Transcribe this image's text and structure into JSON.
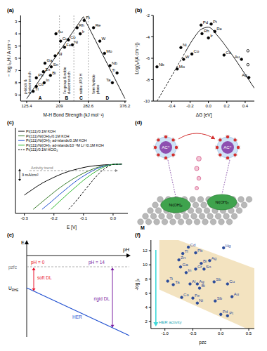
{
  "chart_data": [
    {
      "type": "scatter",
      "title": "(a)",
      "x_label": "M-H Bond Strength (kJ mol⁻¹)",
      "y_label": "− log i₀,H / A cm⁻²",
      "xlim": [
        110,
        380
      ],
      "xticks": [
        125.4,
        209,
        282.6,
        376.2
      ],
      "ylim": [
        9.5,
        2.5
      ],
      "yticks": [
        3,
        4,
        5,
        6,
        7,
        8,
        9
      ],
      "color": "#000000",
      "marker": "filled",
      "labels": [
        "Tl",
        "Cd",
        "Pb",
        "In",
        "Zn",
        "Ga",
        "Bi",
        "Sn",
        "Ag",
        "Au",
        "Cu",
        "Fe",
        "Co",
        "Ni",
        "Rh",
        "Ir",
        "Pt",
        "Re",
        "W",
        "Mo",
        "Nb",
        "Ta",
        "Ti"
      ],
      "x": [
        142,
        150,
        150,
        170,
        168,
        172,
        186,
        188,
        198,
        200,
        212,
        222,
        232,
        242,
        254,
        262,
        272,
        296,
        312,
        324,
        338,
        344,
        356
      ],
      "values": [
        8.7,
        8.3,
        7.6,
        8.0,
        7.1,
        6.4,
        7.4,
        6.7,
        5.8,
        4.0,
        4.6,
        5.1,
        4.5,
        4.9,
        3.5,
        4.0,
        2.9,
        3.5,
        4.6,
        5.6,
        6.6,
        8.0,
        7.2
      ],
      "volcano": {
        "x": [
          125.4,
          270,
          376.2
        ],
        "values": [
          9.3,
          2.6,
          9.3
        ],
        "color": "#000000"
      },
      "regions": [
        {
          "label": "A",
          "text": "p-block & d-electron rich",
          "xlim": [
            110,
            209
          ]
        },
        {
          "label": "B",
          "text": "Fe-group & noble d-electron rich",
          "xlim": [
            209,
            245.8
          ]
        },
        {
          "label": "C",
          "text": "noble UPD H",
          "xlim": [
            245.8,
            282.6
          ]
        },
        {
          "label": "D",
          "text": "form hydride phase",
          "xlim": [
            282.6,
            380
          ]
        }
      ]
    },
    {
      "type": "scatter",
      "title": "(b)",
      "x_label": "ΔG [eV]",
      "y_label": "Log(i₀/(A cm⁻²))",
      "xlim": [
        -0.6,
        0.5
      ],
      "xticks": [
        -0.4,
        -0.2,
        {
          "value": 0,
          "label": "0.0"
        },
        0.2,
        0.4
      ],
      "ylim": [
        -10,
        -2
      ],
      "yticks": [
        -10,
        -8,
        -6,
        -4,
        -2
      ],
      "series": [
        {
          "marker": "filled",
          "color": "#000000",
          "labels": [
            "Pd",
            "Pt",
            "Re",
            "Rh",
            "Ir",
            "Ni",
            "Co",
            "W",
            "Mo",
            "Nb",
            "Cu",
            "Au",
            "Ag"
          ],
          "x": [
            -0.08,
            0.03,
            0.07,
            -0.07,
            0.0,
            -0.3,
            -0.18,
            -0.27,
            -0.34,
            -0.56,
            0.17,
            0.36,
            0.44
          ],
          "values": [
            -2.9,
            -2.8,
            -3.5,
            -3.7,
            -4.1,
            -5.0,
            -5.6,
            -6.1,
            -7.0,
            -6.8,
            -5.7,
            -6.1,
            -7.8
          ]
        },
        {
          "marker": "open",
          "color": "#000000",
          "x": [
            0.43,
            0.43
          ],
          "values": [
            -5.3,
            -6.6
          ]
        }
      ],
      "curves": [
        {
          "line_style": "dashed",
          "color": "#000000",
          "x": [
            -0.56,
            -0.45,
            -0.35,
            -0.25
          ],
          "values": [
            -10,
            -8.4,
            -6.9,
            -5.4
          ]
        },
        {
          "line_style": "solid",
          "color": "#000000",
          "x": [
            -0.25,
            -0.15,
            -0.08,
            0,
            0.1,
            0.2,
            0.3,
            0.4,
            0.5
          ],
          "values": [
            -5.4,
            -4.0,
            -3.3,
            -3.1,
            -3.9,
            -5.0,
            -6.2,
            -7.5,
            -8.8
          ]
        }
      ]
    },
    {
      "type": "line",
      "title": "(c)",
      "x_label": "E [V]",
      "xlim": [
        -0.33,
        0.05
      ],
      "xticks": [
        -0.3,
        -0.2,
        -0.1,
        {
          "value": 0,
          "label": "0.0"
        }
      ],
      "ylim": [
        -12,
        9
      ],
      "tick_labels": "x",
      "legend": "upper left",
      "x": [
        -0.3,
        -0.27,
        -0.24,
        -0.21,
        -0.18,
        -0.15,
        -0.12,
        -0.09,
        -0.06,
        -0.03,
        0,
        0.03
      ],
      "series": [
        {
          "name": "Pt(111)/0.1M KOH",
          "color": "#000000",
          "line_style": "solid",
          "values": [
            -7.5,
            -6,
            -4.6,
            -3.5,
            -2.5,
            -1.7,
            -1.1,
            -0.6,
            -0.3,
            -0.1,
            0,
            0.1
          ]
        },
        {
          "name": "Pt(111)/Ni(OH)₂/0.1M KOH",
          "color": "#3a7d2c",
          "line_style": "solid",
          "values": [
            null,
            -11,
            -9.2,
            -7.4,
            -5.7,
            -4.2,
            -2.9,
            -1.8,
            -0.9,
            -0.3,
            0,
            0.1
          ]
        },
        {
          "name": "Pt(111)/Ni(OH)₂ ad-islands/0.1M KOH",
          "color": "#1f4fd0",
          "line_style": "solid",
          "values": [
            null,
            null,
            -11,
            -9.2,
            -7.3,
            -5.5,
            -3.8,
            -2.4,
            -1.2,
            -0.4,
            0,
            0.1
          ]
        },
        {
          "name": "Pt(111)/Ni(OH)₂ ad-islands/10⁻³M Li⁺/0.1M KOH",
          "color": "#2db82d",
          "line_style": "solid",
          "values": [
            null,
            null,
            null,
            -11,
            -9,
            -7,
            -5.1,
            -3.3,
            -1.8,
            -0.6,
            0,
            0.1
          ]
        },
        {
          "name": "Pt(111)/0.1M HClO₄",
          "color": "#000000",
          "line_style": "dashed",
          "values": [
            null,
            null,
            null,
            null,
            null,
            -11,
            -8.5,
            -5.8,
            -3.2,
            -1.1,
            0,
            0.1
          ]
        }
      ],
      "scale_bar": {
        "value": 3,
        "label": "3 mA/cm²"
      },
      "annotation": "Activity trend"
    },
    {
      "type": "scatter",
      "title": "(f)",
      "x_label": "pzc",
      "y_label": "-log j₀",
      "xlim": [
        -1.25,
        0.6
      ],
      "xticks": [
        {
          "value": -1,
          "label": "-1.0"
        },
        {
          "value": -0.5,
          "label": "-0.5"
        },
        {
          "value": 0,
          "label": "0.0"
        },
        {
          "value": 0.5,
          "label": "0.5"
        }
      ],
      "ylim": [
        1,
        13.5
      ],
      "yticks": [
        2,
        4,
        6,
        8,
        10,
        12
      ],
      "color": "#2a4a9a",
      "marker": "filled",
      "labels": [
        "Hg",
        "Cd",
        "Pb",
        "Tl",
        "Zn",
        "Ag",
        "Bi",
        "Ga",
        "Cr",
        "Sn",
        "In",
        "Ti",
        "Ta",
        "Al",
        "Ag",
        "Bi",
        "Sb",
        "Cu",
        "Au",
        "Co",
        "Fe",
        "Ni",
        "Sb",
        "Pd",
        "Pt"
      ],
      "x": [
        0.05,
        -0.58,
        -0.45,
        -0.68,
        -0.75,
        -0.2,
        -0.35,
        -0.72,
        -0.45,
        -0.3,
        -0.62,
        -0.95,
        -0.85,
        -0.55,
        -0.42,
        -0.38,
        -0.12,
        0.12,
        0.2,
        -0.7,
        -0.5,
        -0.42,
        -0.1,
        0.0,
        0.12
      ],
      "values": [
        12.4,
        12.5,
        11.7,
        11.6,
        10.7,
        10.6,
        10.2,
        9.7,
        9.4,
        9.4,
        8.9,
        7.7,
        7.2,
        7.3,
        7.3,
        6.7,
        7.6,
        7.3,
        5.5,
        5.4,
        5.3,
        4.6,
        4.9,
        3.0,
        2.8
      ],
      "band": {
        "x": [
          -1.1,
          0.6
        ],
        "low": [
          6.5,
          0.5
        ],
        "high": [
          14.5,
          9.5
        ],
        "color": "#f3e3c0"
      },
      "annotation": "HER activity"
    }
  ],
  "diagrams": {
    "d": {
      "title": "(d)",
      "cations": [
        "AC⁺",
        "AC⁺"
      ],
      "islands": [
        "Ni(OH)₂",
        "Ni(OH)₂"
      ],
      "surface": "M"
    },
    "e": {
      "title": "(e)",
      "y_axis": "E",
      "x_axis": "pH",
      "reference": "pzfc",
      "acid": "pH = 0",
      "base": "pH = 14",
      "acid_layer": "soft DL",
      "base_layer": "rigid DL",
      "potential": {
        "main": "U",
        "sub": "RHE"
      },
      "reaction": "HER"
    }
  }
}
